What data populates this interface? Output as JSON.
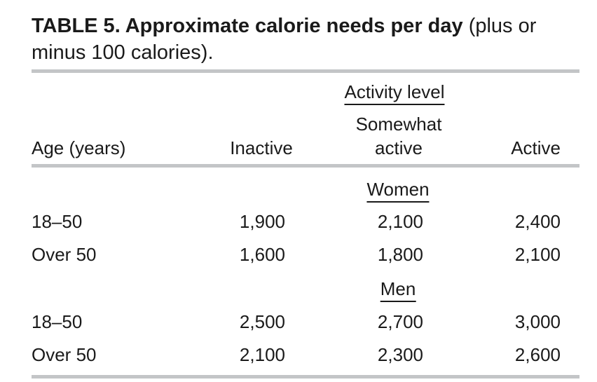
{
  "table": {
    "caption_bold": "TABLE 5. Approximate calorie needs per day",
    "caption_rest": " (plus or minus 100 calories).",
    "spanner": "Activity level",
    "headers": {
      "age": "Age (years)",
      "inactive": "Inactive",
      "somewhat_line1": "Somewhat",
      "somewhat_line2": "active",
      "active": "Active"
    },
    "groups": [
      {
        "label": "Women",
        "rows": [
          {
            "age": "18–50",
            "inactive": "1,900",
            "somewhat": "2,100",
            "active": "2,400"
          },
          {
            "age": "Over 50",
            "inactive": "1,600",
            "somewhat": "1,800",
            "active": "2,100"
          }
        ]
      },
      {
        "label": "Men",
        "rows": [
          {
            "age": "18–50",
            "inactive": "2,500",
            "somewhat": "2,700",
            "active": "3,000"
          },
          {
            "age": "Over 50",
            "inactive": "2,100",
            "somewhat": "2,300",
            "active": "2,600"
          }
        ]
      }
    ]
  }
}
